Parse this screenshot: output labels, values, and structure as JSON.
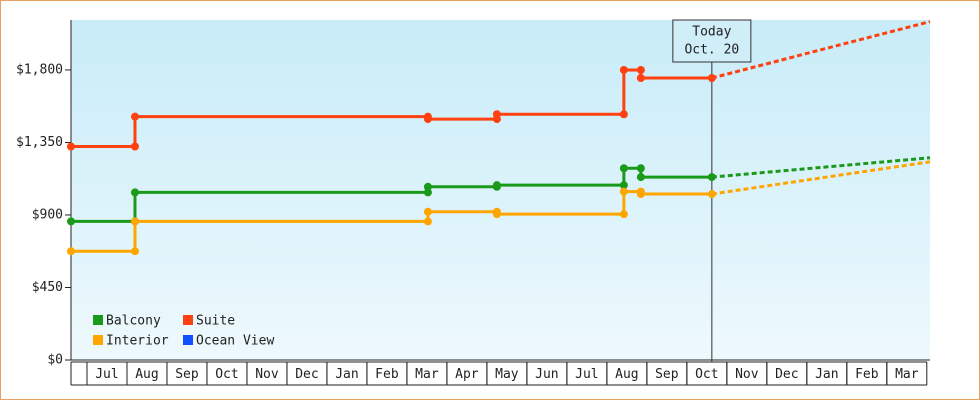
{
  "chart_data": {
    "type": "step-line",
    "categories": [
      "Jul",
      "Aug",
      "Sep",
      "Oct",
      "Nov",
      "Dec",
      "Jan",
      "Feb",
      "Mar",
      "Apr",
      "May",
      "Jun",
      "Jul",
      "Aug",
      "Sep",
      "Oct",
      "Nov",
      "Dec",
      "Jan",
      "Feb",
      "Mar"
    ],
    "xlim": [
      -0.4,
      21.08
    ],
    "ylim": [
      0,
      2110
    ],
    "yticks": [
      {
        "value": 0,
        "label": "$0"
      },
      {
        "value": 450,
        "label": "$450"
      },
      {
        "value": 900,
        "label": "$900"
      },
      {
        "value": 1350,
        "label": "$1,350"
      },
      {
        "value": 1800,
        "label": "$1,800"
      }
    ],
    "annotation": {
      "x": 15.625,
      "lines": [
        "Today",
        "Oct. 20"
      ]
    },
    "series": [
      {
        "name": "Balcony",
        "color": "#1a9a1a",
        "x": [
          -0.4,
          1.2,
          1.2,
          8.525,
          8.525,
          10.25,
          10.25,
          13.425,
          13.425,
          13.85,
          13.85,
          15.625
        ],
        "values": [
          860,
          860,
          1040,
          1040,
          1075,
          1075,
          1085,
          1085,
          1190,
          1190,
          1135,
          1135
        ],
        "forecast_x": [
          15.625,
          21.08
        ],
        "forecast_values": [
          1135,
          1255
        ]
      },
      {
        "name": "Suite",
        "color": "#ff4010",
        "x": [
          -0.4,
          1.2,
          1.2,
          8.525,
          8.525,
          10.25,
          10.25,
          13.425,
          13.425,
          13.85,
          13.85,
          15.625
        ],
        "values": [
          1325,
          1325,
          1510,
          1510,
          1495,
          1495,
          1525,
          1525,
          1800,
          1800,
          1750,
          1750
        ],
        "forecast_x": [
          15.625,
          21.08
        ],
        "forecast_values": [
          1750,
          2100
        ]
      },
      {
        "name": "Interior",
        "color": "#ffa500",
        "x": [
          -0.4,
          1.2,
          1.2,
          8.525,
          8.525,
          10.25,
          10.25,
          13.425,
          13.425,
          13.85,
          13.85,
          15.625
        ],
        "values": [
          675,
          675,
          860,
          860,
          920,
          920,
          905,
          905,
          1045,
          1045,
          1030,
          1030
        ],
        "forecast_x": [
          15.625,
          21.08
        ],
        "forecast_values": [
          1030,
          1230
        ]
      },
      {
        "name": "Ocean View",
        "color": "#1050ff",
        "x": [],
        "values": [],
        "forecast_x": [],
        "forecast_values": []
      }
    ]
  }
}
